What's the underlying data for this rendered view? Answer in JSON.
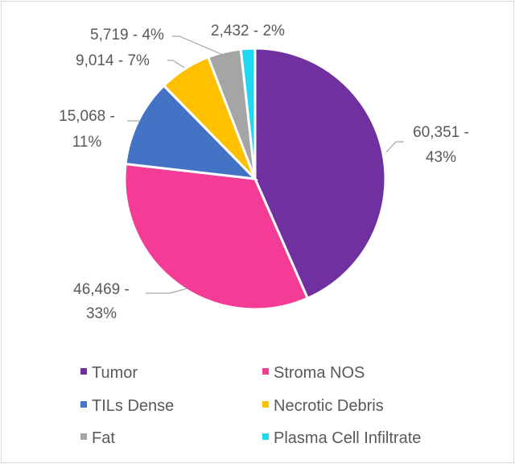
{
  "chart_data": {
    "type": "pie",
    "title": "",
    "categories": [
      "Tumor",
      "Stroma NOS",
      "TILs Dense",
      "Necrotic Debris",
      "Fat",
      "Plasma Cell Infiltrate"
    ],
    "values": [
      60351,
      46469,
      15068,
      9014,
      5719,
      2432
    ],
    "percents": [
      43,
      33,
      11,
      7,
      4,
      2
    ],
    "colors": [
      "#7030A0",
      "#F43C96",
      "#4472C4",
      "#FFC000",
      "#A5A5A5",
      "#1FD8F0"
    ],
    "data_labels": [
      [
        "60,351 -",
        "43%"
      ],
      [
        "46,469 -",
        "33%"
      ],
      [
        "15,068 -",
        "11%"
      ],
      [
        "9,014 - 7%"
      ],
      [
        "5,719 - 4%"
      ],
      [
        "2,432 - 2%"
      ]
    ],
    "legend_position": "bottom",
    "legend": [
      "Tumor",
      "Stroma NOS",
      "TILs Dense",
      "Necrotic Debris",
      "Fat",
      "Plasma Cell Infiltrate"
    ]
  }
}
